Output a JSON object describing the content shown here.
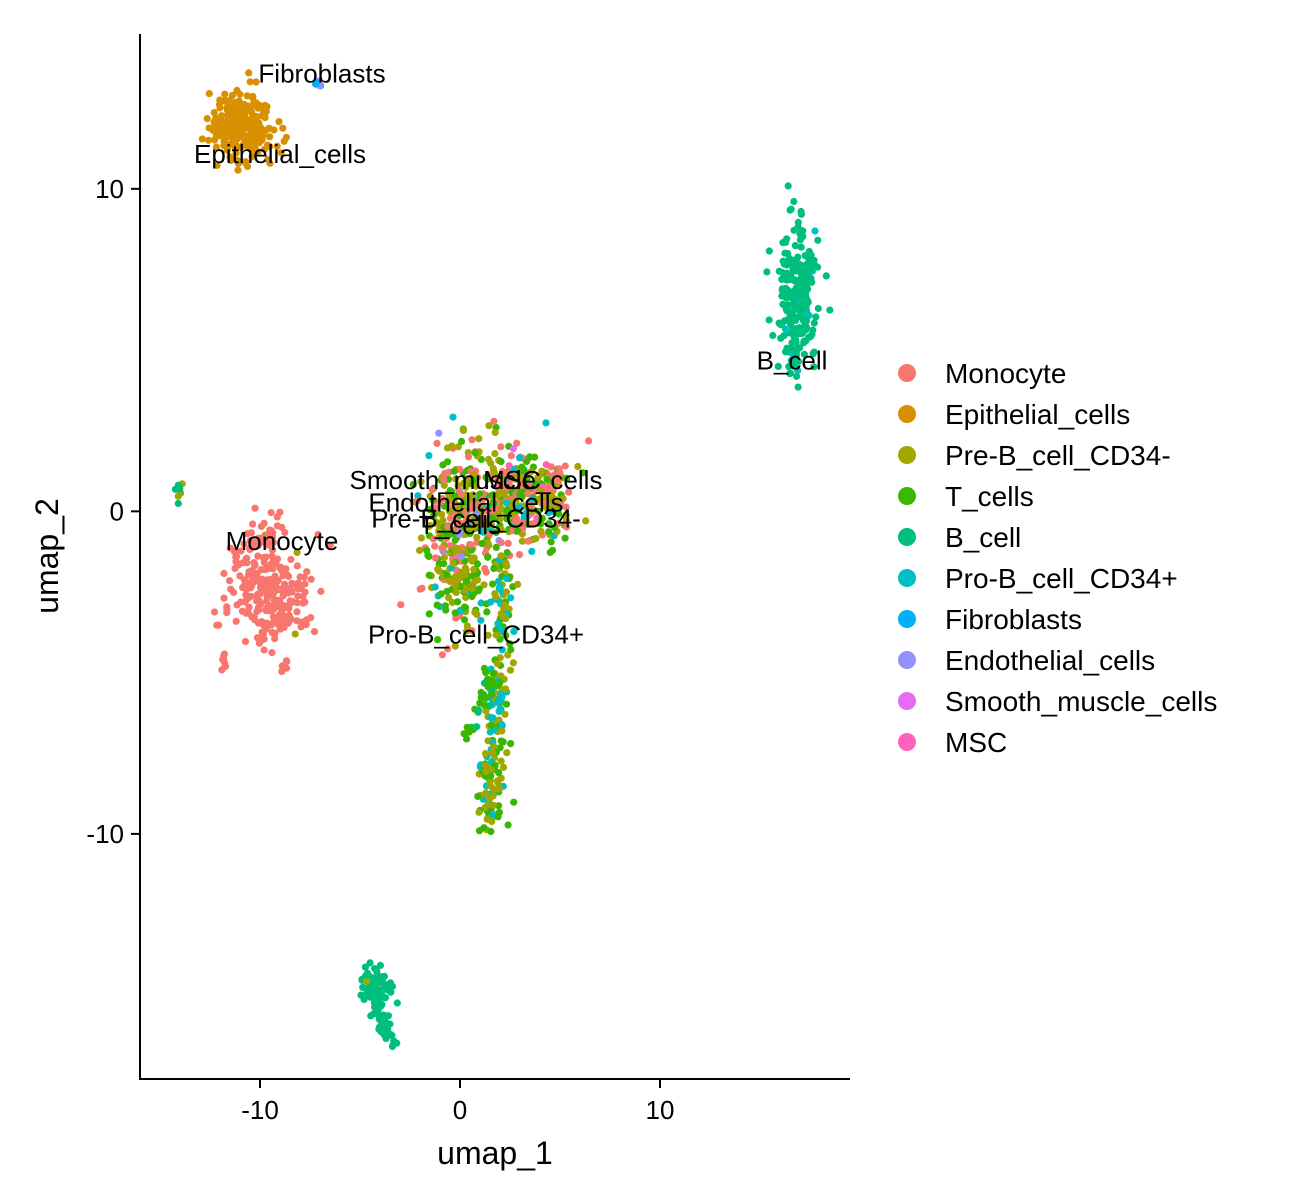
{
  "chart_data": {
    "type": "scatter",
    "xlabel": "umap_1",
    "ylabel": "umap_2",
    "xlim": [
      -16,
      19.5
    ],
    "ylim": [
      -17.6,
      14.8
    ],
    "x_ticks": [
      {
        "value": -10,
        "label": "-10"
      },
      {
        "value": 0,
        "label": "0"
      },
      {
        "value": 10,
        "label": "10"
      }
    ],
    "y_ticks": [
      {
        "value": -10,
        "label": "-10"
      },
      {
        "value": 0,
        "label": "0"
      },
      {
        "value": 10,
        "label": "10"
      }
    ],
    "grid": false,
    "legend_position": "right",
    "legend": [
      {
        "name": "Monocyte",
        "color": "#F8766D"
      },
      {
        "name": "Epithelial_cells",
        "color": "#D89000"
      },
      {
        "name": "Pre-B_cell_CD34-",
        "color": "#A3A500"
      },
      {
        "name": "T_cells",
        "color": "#39B600"
      },
      {
        "name": "B_cell",
        "color": "#00BF7D"
      },
      {
        "name": "Pro-B_cell_CD34+",
        "color": "#00BFC4"
      },
      {
        "name": "Fibroblasts",
        "color": "#00B0F6"
      },
      {
        "name": "Endothelial_cells",
        "color": "#9590FF"
      },
      {
        "name": "Smooth_muscle_cells",
        "color": "#E76BF3"
      },
      {
        "name": "MSC",
        "color": "#FF62BC"
      }
    ],
    "cluster_labels": [
      {
        "text": "Fibroblasts",
        "x": -6.9,
        "y": 13.3
      },
      {
        "text": "Epithelial_cells",
        "x": -9.0,
        "y": 10.8
      },
      {
        "text": "B_cell",
        "x": 16.6,
        "y": 4.4
      },
      {
        "text": "Smooth_muscle_cells",
        "x": 0.8,
        "y": 0.7
      },
      {
        "text": "MSC",
        "x": 2.6,
        "y": 0.7
      },
      {
        "text": "Endothelial_cells",
        "x": 0.3,
        "y": 0.0
      },
      {
        "text": "Pre-B_cell_CD34-",
        "x": 0.8,
        "y": -0.5
      },
      {
        "text": "T_cells",
        "x": 0.0,
        "y": -0.7
      },
      {
        "text": "Monocyte",
        "x": -8.9,
        "y": -1.2
      },
      {
        "text": "Pro-B_cell_CD34+",
        "x": 0.8,
        "y": -4.1
      }
    ],
    "clusters": [
      {
        "name": "Epithelial_cells",
        "cx": -10.9,
        "cy": 12.0,
        "sx": 0.8,
        "sy": 0.55,
        "n": 230,
        "mix": [
          [
            1,
            1.0
          ]
        ]
      },
      {
        "name": "Fibroblasts",
        "cx": -7.1,
        "cy": 13.3,
        "sx": 0.12,
        "sy": 0.1,
        "n": 6,
        "mix": [
          [
            6,
            0.5
          ],
          [
            7,
            0.5
          ]
        ]
      },
      {
        "name": "B_cell_top",
        "cx": 16.9,
        "cy": 6.6,
        "sx": 0.5,
        "sy": 1.0,
        "n": 230,
        "mix": [
          [
            4,
            0.97
          ],
          [
            5,
            0.03
          ]
        ]
      },
      {
        "name": "Monocyte_main",
        "cx": -9.6,
        "cy": -2.5,
        "sx": 1.0,
        "sy": 0.9,
        "n": 260,
        "mix": [
          [
            0,
            0.97
          ],
          [
            2,
            0.03
          ]
        ]
      },
      {
        "name": "Monocyte_tail",
        "cx": -11.8,
        "cy": -4.6,
        "sx": 0.05,
        "sy": 0.25,
        "n": 8,
        "mix": [
          [
            0,
            1.0
          ]
        ]
      },
      {
        "name": "Small_left",
        "cx": -14.1,
        "cy": 0.7,
        "sx": 0.2,
        "sy": 0.2,
        "n": 8,
        "mix": [
          [
            4,
            0.6
          ],
          [
            2,
            0.4
          ]
        ]
      },
      {
        "name": "Central_right",
        "cx": 3.2,
        "cy": 0.5,
        "sx": 1.3,
        "sy": 0.7,
        "n": 320,
        "mix": [
          [
            0,
            0.3
          ],
          [
            2,
            0.3
          ],
          [
            3,
            0.3
          ],
          [
            5,
            0.06
          ],
          [
            8,
            0.02
          ],
          [
            9,
            0.02
          ]
        ]
      },
      {
        "name": "Central_left",
        "cx": 0.0,
        "cy": -0.5,
        "sx": 1.0,
        "sy": 1.3,
        "n": 330,
        "mix": [
          [
            0,
            0.25
          ],
          [
            2,
            0.35
          ],
          [
            3,
            0.32
          ],
          [
            5,
            0.05
          ],
          [
            7,
            0.03
          ]
        ]
      },
      {
        "name": "Central_low",
        "cx": 0.0,
        "cy": -2.5,
        "sx": 0.6,
        "sy": 0.6,
        "n": 60,
        "mix": [
          [
            2,
            0.45
          ],
          [
            3,
            0.45
          ],
          [
            5,
            0.1
          ]
        ]
      },
      {
        "name": "Bottom",
        "cx": -4.1,
        "cy": -14.8,
        "sx": 0.4,
        "sy": 0.4,
        "n": 60,
        "mix": [
          [
            4,
            1.0
          ]
        ]
      }
    ],
    "streams": [
      {
        "name": "B_cell_tail",
        "x0": 16.7,
        "y0": 5.0,
        "x1": 16.6,
        "y1": 4.2,
        "width": 0.15,
        "n": 8,
        "mix": [
          [
            4,
            0.8
          ],
          [
            5,
            0.2
          ]
        ]
      },
      {
        "name": "Monocyte_tail_b",
        "x0": -10.9,
        "y0": -1.6,
        "x1": -9.0,
        "y1": -0.3,
        "width": 0.25,
        "n": 30,
        "mix": [
          [
            0,
            1.0
          ]
        ]
      },
      {
        "name": "Pro_B_branch",
        "x0": 2.2,
        "y0": -1.5,
        "x1": 1.5,
        "y1": -9.7,
        "width": 0.35,
        "n": 220,
        "mix": [
          [
            2,
            0.45
          ],
          [
            3,
            0.3
          ],
          [
            5,
            0.25
          ]
        ]
      },
      {
        "name": "Pro_B_sidearm",
        "x0": 1.5,
        "y0": -5.3,
        "x1": 0.3,
        "y1": -7.1,
        "width": 0.15,
        "n": 25,
        "mix": [
          [
            3,
            0.6
          ],
          [
            4,
            0.4
          ]
        ]
      },
      {
        "name": "Bottom_tail",
        "x0": -4.8,
        "y0": -14.2,
        "x1": -3.5,
        "y1": -16.5,
        "width": 0.2,
        "n": 60,
        "mix": [
          [
            4,
            0.95
          ],
          [
            2,
            0.05
          ]
        ]
      }
    ]
  }
}
